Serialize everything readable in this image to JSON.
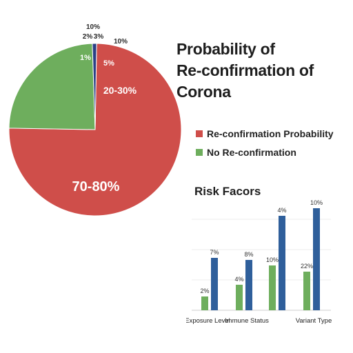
{
  "title_line1": "Probability of",
  "title_line2": "Re-confirmation of Corona",
  "colors": {
    "red": "#cf4e4a",
    "green": "#6eae5d",
    "blue": "#2f5f9b",
    "navy": "#2b3f86"
  },
  "chart_data": [
    {
      "type": "pie",
      "slices": [
        {
          "label": "70-80%",
          "value": 75,
          "color": "#cf4e4a"
        },
        {
          "label": "20-30%",
          "value": 24.2,
          "color": "#6eae5d"
        },
        {
          "label": "",
          "value": 0.8,
          "color": "#2b3f86"
        }
      ],
      "annotations": [
        "10%",
        "2%",
        "3%",
        "10%",
        "1%",
        "5%"
      ],
      "legend": [
        {
          "label": "Re-confirmation Probability",
          "color": "#cf4e4a"
        },
        {
          "label": "No Re-confirmation",
          "color": "#6eae5d"
        }
      ]
    },
    {
      "type": "bar",
      "title": "Risk Facors",
      "categories": [
        "Exposure Level",
        "Immune Status",
        "",
        "Variant Type"
      ],
      "series": [
        {
          "color": "#6eae5d",
          "values": [
            2,
            4,
            10,
            22
          ],
          "labels": [
            "2%",
            "4%",
            "10%",
            "22%"
          ]
        },
        {
          "color": "#2f5f9b",
          "values": [
            7,
            8,
            4,
            10
          ],
          "labels": [
            "7%",
            "8%",
            "4%",
            "10%"
          ]
        }
      ]
    }
  ]
}
